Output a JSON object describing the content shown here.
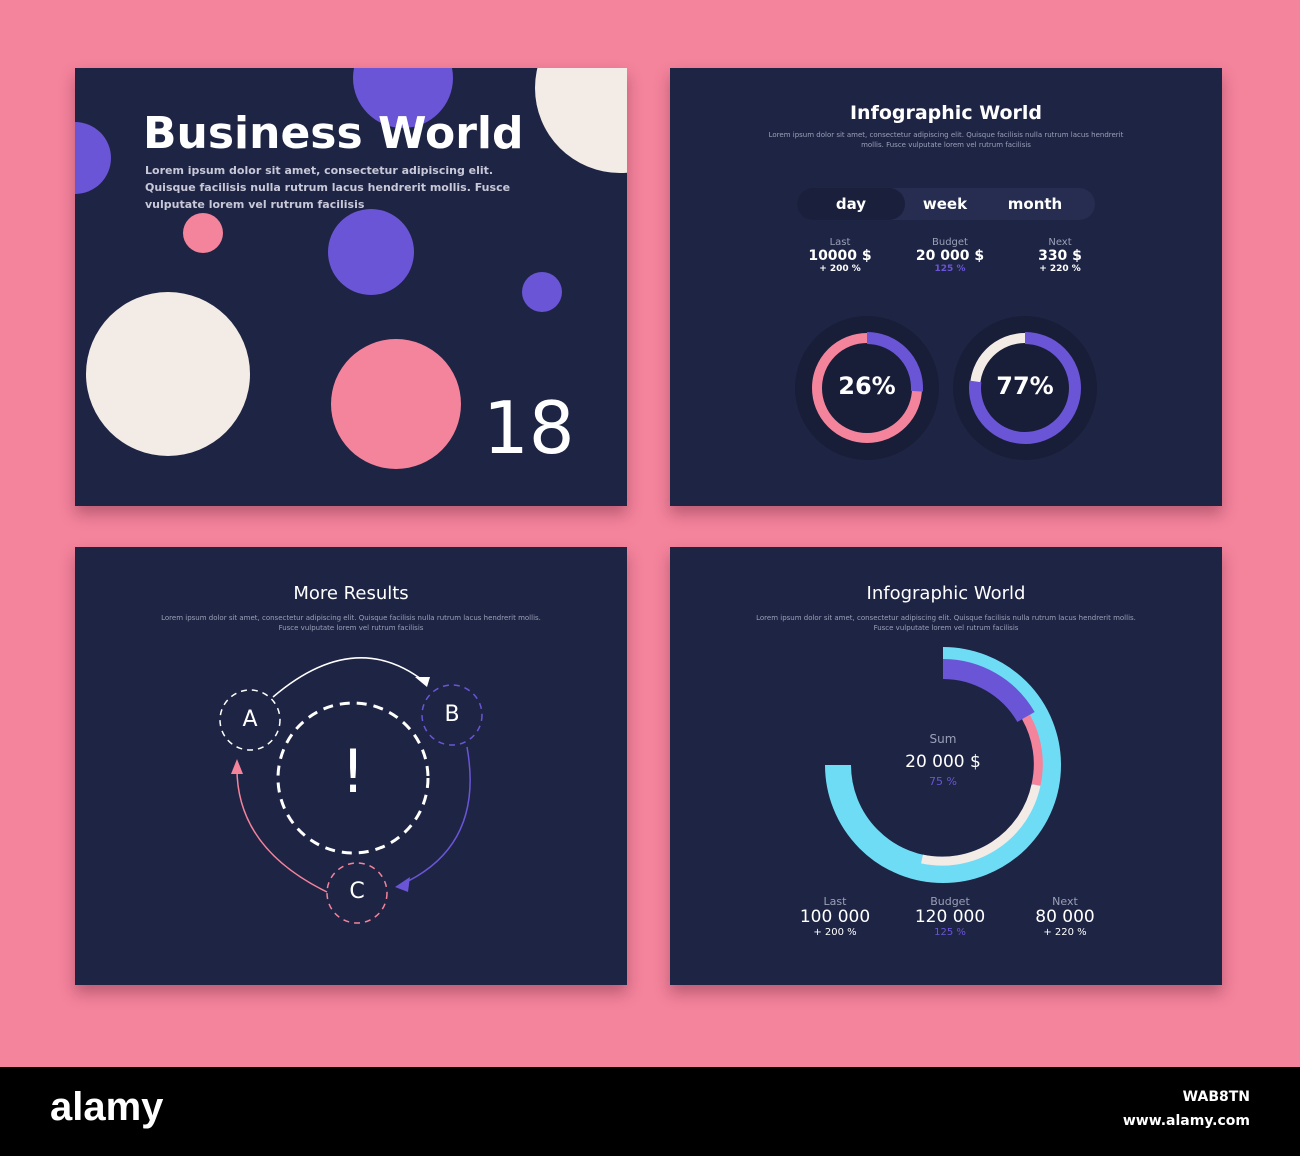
{
  "slide1": {
    "title": "Business World",
    "body": "Lorem ipsum dolor sit amet, consectetur adipiscing elit. Quisque facilisis nulla rutrum lacus hendrerit mollis. Fusce vulputate lorem vel rutrum facilisis",
    "number": "18"
  },
  "slide2": {
    "title": "Infographic World",
    "body": "Lorem ipsum dolor sit amet, consectetur adipiscing elit. Quisque facilisis nulla rutrum lacus hendrerit mollis. Fusce vulputate lorem vel rutrum facilisis",
    "tabs": [
      {
        "label": "day",
        "active": true
      },
      {
        "label": "week",
        "active": false
      },
      {
        "label": "month",
        "active": false
      }
    ],
    "stats": [
      {
        "label": "Last",
        "value": "10000 $",
        "change": "+ 200 %"
      },
      {
        "label": "Budget",
        "value": "20 000 $",
        "change": "125 %"
      },
      {
        "label": "Next",
        "value": "330 $",
        "change": "+ 220 %"
      }
    ],
    "donuts": [
      {
        "label": "26%",
        "percent": 26,
        "color": "#6a55d6",
        "track": "#f4839c"
      },
      {
        "label": "77%",
        "percent": 77,
        "color": "#6a55d6",
        "track": "#f3ebe6"
      }
    ]
  },
  "slide3": {
    "title": "More Results",
    "body1": "Lorem ipsum dolor sit amet, consectetur adipiscing elit. Quisque facilisis nulla rutrum lacus hendrerit mollis.",
    "body2": "Fusce vulputate lorem vel rutrum facilisis",
    "nodes": {
      "a": "A",
      "b": "B",
      "c": "C",
      "center": "!"
    }
  },
  "slide4": {
    "title": "Infographic World",
    "body1": "Lorem ipsum dolor sit amet, consectetur adipiscing elit. Quisque facilisis nulla rutrum lacus hendrerit mollis.",
    "body2": "Fusce vulputate lorem vel rutrum facilisis",
    "sum_label": "Sum",
    "sum_value": "20 000 $",
    "sum_percent": "75 %",
    "stats": [
      {
        "label": "Last",
        "value": "100 000",
        "change": "+ 200 %"
      },
      {
        "label": "Budget",
        "value": "120 000",
        "change": "125 %"
      },
      {
        "label": "Next",
        "value": "80 000",
        "change": "+ 220 %"
      }
    ]
  },
  "colors": {
    "background": "#f4839c",
    "panel": "#1e2444",
    "purple": "#6a55d6",
    "pink": "#f4839c",
    "cream": "#f3ebe6",
    "cyan": "#6fdcf5"
  },
  "footer": {
    "brand": "alamy",
    "id": "WAB8TN",
    "url": "www.alamy.com"
  }
}
